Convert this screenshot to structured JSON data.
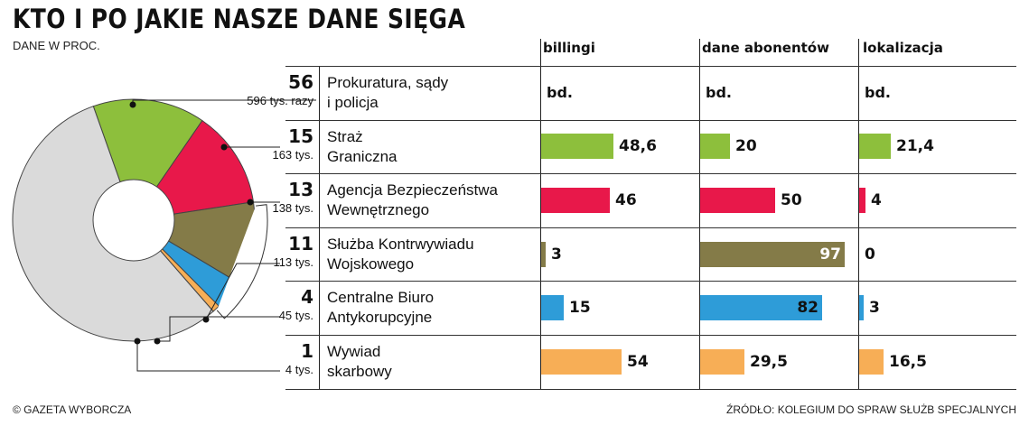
{
  "title": "KTO I PO JAKIE NASZE DANE SIĘGA",
  "subtitle": "DANE W PROC.",
  "credit": "© GAZETA WYBORCZA",
  "source": "ŹRÓDŁO: KOLEGIUM DO SPRAW SŁUŻB SPECJALNYCH",
  "colors": {
    "prokuratura": "#dadada",
    "straz": "#8dbf3c",
    "abw": "#e8184a",
    "skw": "#847b48",
    "cba": "#2e9cd8",
    "wywiad": "#f7ae56"
  },
  "chart_data": {
    "type": "table",
    "columns": [
      "billingi",
      "dane abonentów",
      "lokalizacja"
    ],
    "rows": [
      {
        "share": "56",
        "requests": "596 tys. razy",
        "name_lines": [
          "Prokuratura, sądy",
          "i policja"
        ],
        "billingi": "bd.",
        "dane_abonentow": "bd.",
        "lokalizacja": "bd."
      },
      {
        "share": "15",
        "requests": "163 tys.",
        "name_lines": [
          "Straż",
          "Graniczna"
        ],
        "billingi": "48,6",
        "dane_abonentow": "20",
        "lokalizacja": "21,4"
      },
      {
        "share": "13",
        "requests": "138 tys.",
        "name_lines": [
          "Agencja Bezpieczeństwa",
          "Wewnętrznego"
        ],
        "billingi": "46",
        "dane_abonentow": "50",
        "lokalizacja": "4"
      },
      {
        "share": "11",
        "requests": "113 tys.",
        "name_lines": [
          "Służba Kontrwywiadu",
          "Wojskowego"
        ],
        "billingi": "3",
        "dane_abonentow": "97",
        "lokalizacja": "0"
      },
      {
        "share": "4",
        "requests": "45 tys.",
        "name_lines": [
          "Centralne Biuro",
          "Antykorupcyjne"
        ],
        "billingi": "15",
        "dane_abonentow": "82",
        "lokalizacja": "3"
      },
      {
        "share": "1",
        "requests": "4 tys.",
        "name_lines": [
          "Wywiad",
          "skarbowy"
        ],
        "billingi": "54",
        "dane_abonentow": "29,5",
        "lokalizacja": "16,5"
      }
    ],
    "pie": {
      "type": "pie",
      "values": [
        56,
        15,
        13,
        11,
        4,
        1
      ]
    }
  }
}
